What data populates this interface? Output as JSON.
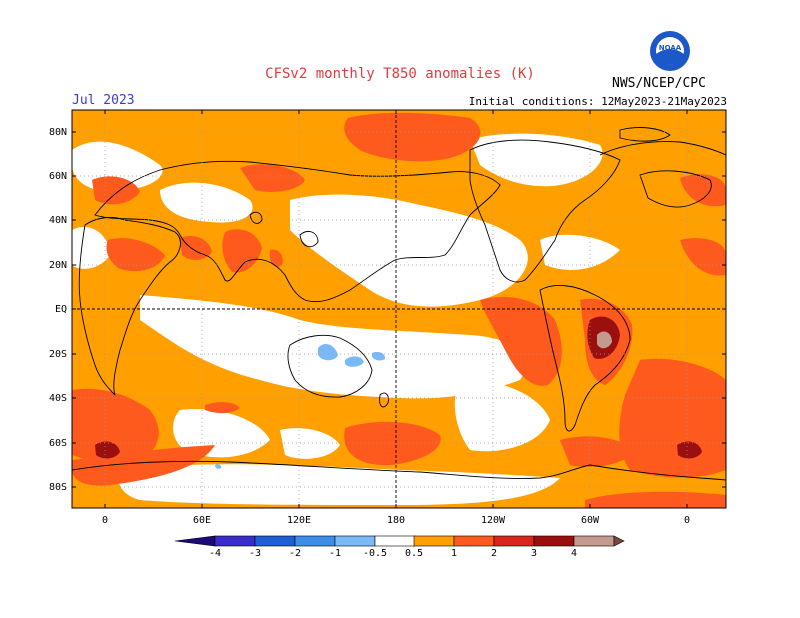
{
  "title": "CFSv2 monthly T850 anomalies (K)",
  "month": "Jul 2023",
  "initial_conditions": "Initial conditions: 12May2023-21May2023",
  "org": "NWS/NCEP/CPC",
  "logo_text": "NOAA",
  "lat_labels": [
    "80N",
    "60N",
    "40N",
    "20N",
    "EQ",
    "20S",
    "40S",
    "60S",
    "80S"
  ],
  "lon_labels": [
    "0",
    "60E",
    "120E",
    "180",
    "120W",
    "60W",
    "0"
  ],
  "colorbar": {
    "labels": [
      "-4",
      "-3",
      "-2",
      "-1",
      "-0.5",
      "0.5",
      "1",
      "2",
      "3",
      "4"
    ],
    "colors": [
      "#1c0a7a",
      "#3a2cc8",
      "#1f5fd4",
      "#3c8ee8",
      "#7ab9f5",
      "#ffffff",
      "#ffa000",
      "#ff5a1e",
      "#d9261e",
      "#9c0f0f",
      "#c49a8e",
      "#7a4a40"
    ]
  },
  "anomaly_palette": {
    "orange": "#ffa000",
    "red": "#ff5a1e",
    "darkred": "#9c0f0f",
    "rose": "#c49a8e",
    "lightblue": "#7ab9f5"
  }
}
